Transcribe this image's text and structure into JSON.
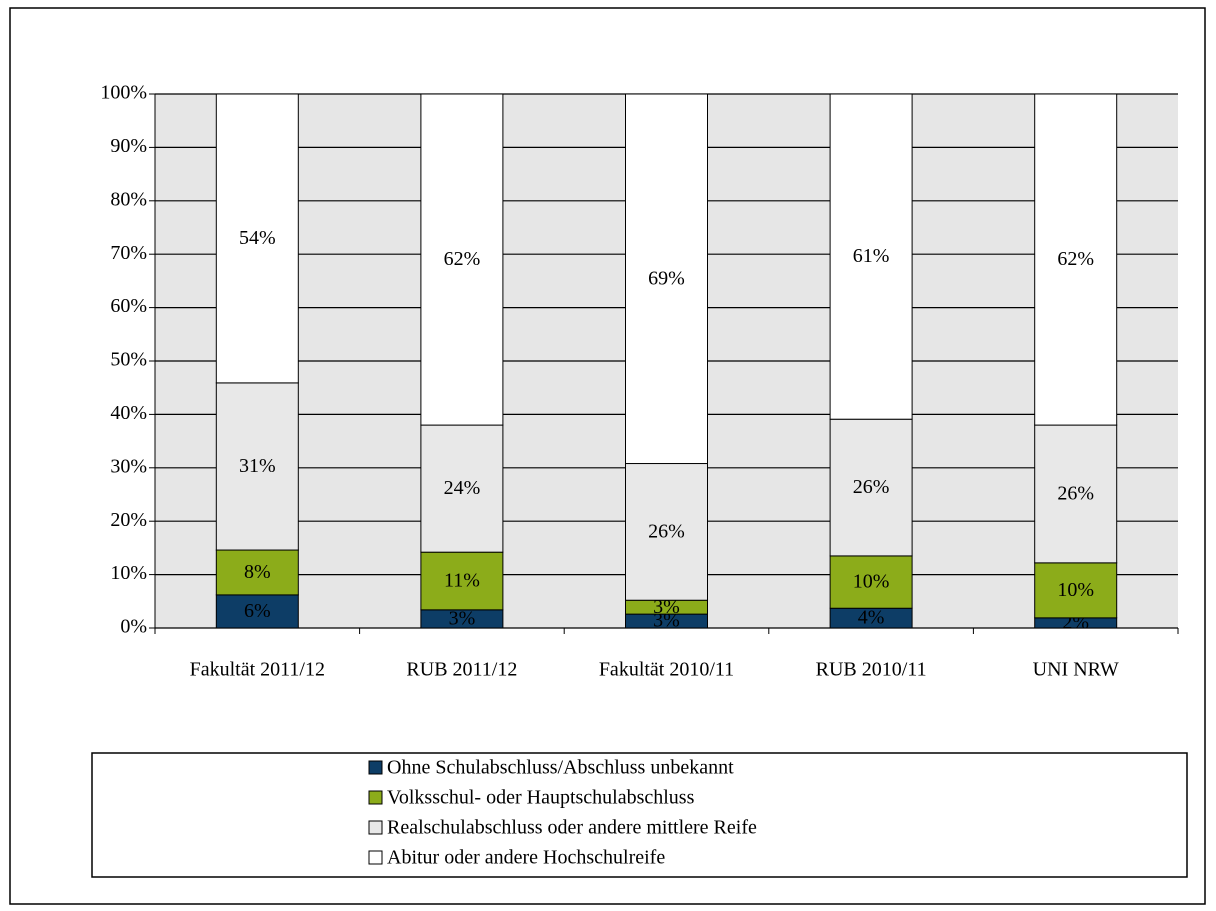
{
  "chart_data": {
    "type": "stacked_bar",
    "categories": [
      "Fakultät 2011/12",
      "RUB 2011/12",
      "Fakultät 2010/11",
      "RUB 2010/11",
      "UNI NRW"
    ],
    "series": [
      {
        "name": "Ohne Schulabschluss/Abschluss unbekannt",
        "color": "#0d3d66",
        "values": [
          6.2,
          3.4,
          2.6,
          3.7,
          1.9
        ],
        "value_labels": [
          "6%",
          "3%",
          "3%",
          "4%",
          "2%"
        ]
      },
      {
        "name": "Volksschul- oder Hauptschulabschluss",
        "color": "#8cac1a",
        "values": [
          8.4,
          10.8,
          2.6,
          9.8,
          10.3
        ],
        "value_labels": [
          "8%",
          "11%",
          "3%",
          "10%",
          "10%"
        ]
      },
      {
        "name": "Realschulabschluss oder andere mittlere Reife",
        "color": "#e8e8e8",
        "values": [
          31.3,
          23.8,
          25.6,
          25.6,
          25.8
        ],
        "value_labels": [
          "31%",
          "24%",
          "26%",
          "26%",
          "26%"
        ]
      },
      {
        "name": "Abitur oder andere Hochschulreife",
        "color": "#ffffff",
        "values": [
          54.1,
          62.0,
          69.2,
          60.9,
          62.0
        ],
        "value_labels": [
          "54%",
          "62%",
          "69%",
          "61%",
          "62%"
        ]
      }
    ],
    "ylim": [
      0,
      100
    ],
    "yticks": [
      {
        "value": 0,
        "label": "0%"
      },
      {
        "value": 10,
        "label": "10%"
      },
      {
        "value": 20,
        "label": "20%"
      },
      {
        "value": 30,
        "label": "30%"
      },
      {
        "value": 40,
        "label": "40%"
      },
      {
        "value": 50,
        "label": "50%"
      },
      {
        "value": 60,
        "label": "60%"
      },
      {
        "value": 70,
        "label": "70%"
      },
      {
        "value": 80,
        "label": "80%"
      },
      {
        "value": 90,
        "label": "90%"
      },
      {
        "value": 100,
        "label": "100%"
      }
    ],
    "grid": true,
    "legend": "bottom"
  }
}
